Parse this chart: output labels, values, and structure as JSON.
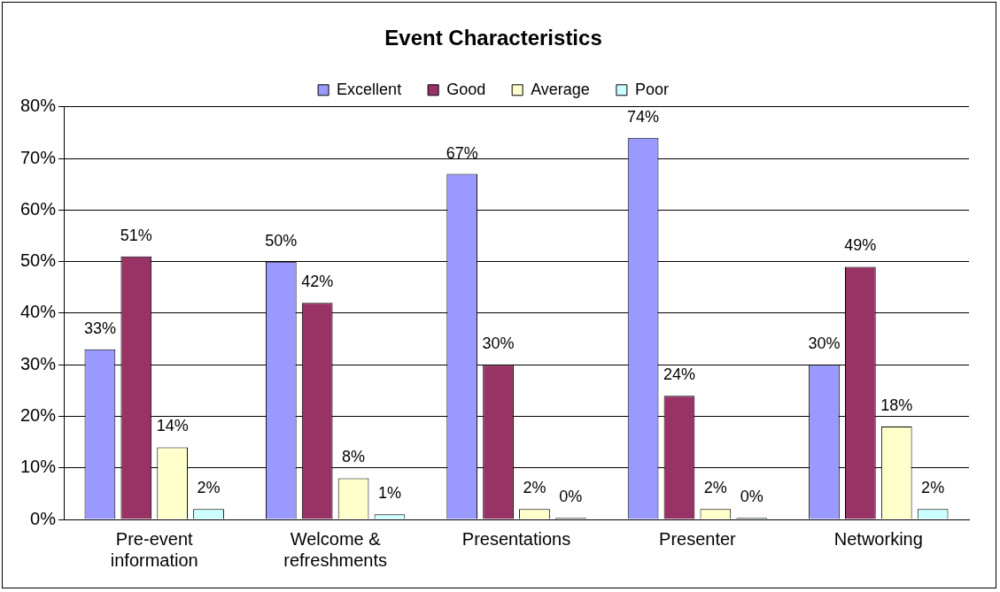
{
  "chart_data": {
    "type": "bar",
    "title": "Event Characteristics",
    "categories": [
      "Pre-event information",
      "Welcome & refreshments",
      "Presentations",
      "Presenter",
      "Networking"
    ],
    "series": [
      {
        "name": "Excellent",
        "color": "#9999ff",
        "values": [
          33,
          50,
          67,
          74,
          30
        ],
        "value_labels": [
          "33%",
          "50%",
          "67%",
          "74%",
          "30%"
        ]
      },
      {
        "name": "Good",
        "color": "#993366",
        "values": [
          51,
          42,
          30,
          24,
          49
        ],
        "value_labels": [
          "51%",
          "42%",
          "30%",
          "24%",
          "49%"
        ]
      },
      {
        "name": "Average",
        "color": "#ffffcc",
        "values": [
          14,
          8,
          2,
          2,
          18
        ],
        "value_labels": [
          "14%",
          "8%",
          "2%",
          "2%",
          "18%"
        ]
      },
      {
        "name": "Poor",
        "color": "#ccffff",
        "values": [
          2,
          1,
          0.3,
          0.3,
          2
        ],
        "value_labels": [
          "2%",
          "1%",
          "0%",
          "0%",
          "2%"
        ]
      }
    ],
    "ylim": [
      0,
      80
    ],
    "yticks": [
      {
        "value": 0,
        "label": "0%"
      },
      {
        "value": 10,
        "label": "10%"
      },
      {
        "value": 20,
        "label": "20%"
      },
      {
        "value": 30,
        "label": "30%"
      },
      {
        "value": 40,
        "label": "40%"
      },
      {
        "value": 50,
        "label": "50%"
      },
      {
        "value": 60,
        "label": "60%"
      },
      {
        "value": 70,
        "label": "70%"
      },
      {
        "value": 80,
        "label": "80%"
      }
    ],
    "grid": "y",
    "legend": "top"
  }
}
